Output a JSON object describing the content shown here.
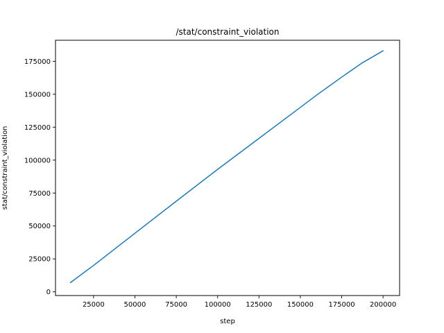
{
  "chart_data": {
    "type": "line",
    "title": "/stat/constraint_violation",
    "xlabel": "step",
    "ylabel": "stat/constraint_violation",
    "xlim": [
      2000,
      210000
    ],
    "ylim": [
      -2800,
      191000
    ],
    "x_ticks": [
      25000,
      50000,
      75000,
      100000,
      125000,
      150000,
      175000,
      200000
    ],
    "y_ticks": [
      0,
      25000,
      50000,
      75000,
      100000,
      125000,
      150000,
      175000
    ],
    "grid": false,
    "colors": {
      "line": "#1f77b4"
    },
    "series": [
      {
        "x": [
          11000,
          25000,
          50000,
          75000,
          100000,
          125000,
          150000,
          160000,
          175000,
          187000,
          200000
        ],
        "y": [
          7000,
          20000,
          44500,
          68800,
          93000,
          116500,
          140000,
          149500,
          163000,
          173500,
          183000
        ]
      }
    ]
  }
}
